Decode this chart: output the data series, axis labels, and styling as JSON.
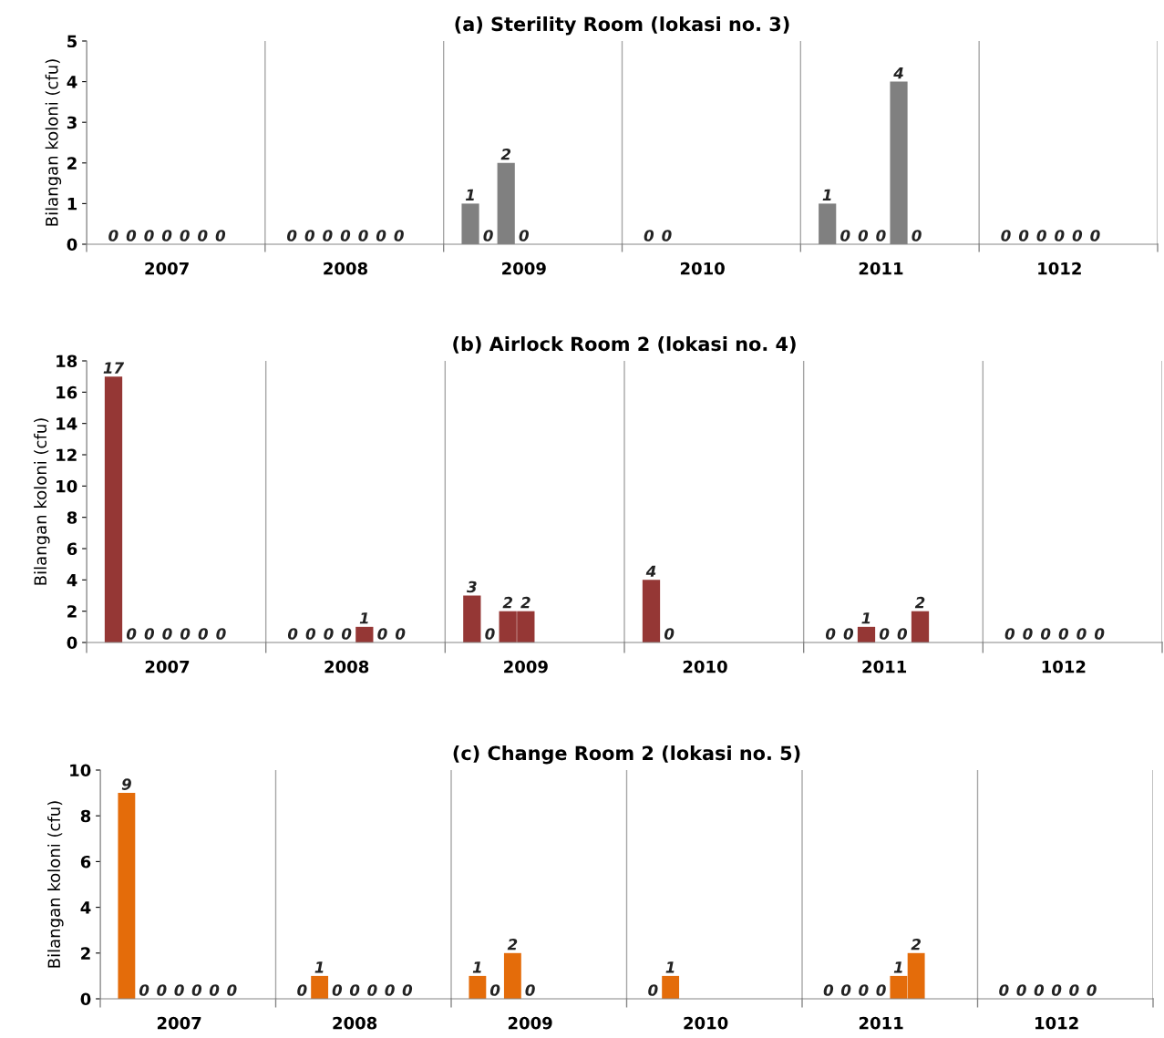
{
  "chart_data": [
    {
      "type": "bar",
      "title": "(a) Sterility Room (lokasi no. 3)",
      "ylabel": "Bilangan koloni (cfu)",
      "color": "#808080",
      "ylim": [
        0,
        5
      ],
      "yticks": [
        0,
        1,
        2,
        3,
        4,
        5
      ],
      "grid": "x",
      "data_labels": true,
      "categories": [
        null,
        null,
        null,
        null,
        "2007",
        null,
        null,
        null,
        null,
        null,
        null,
        null,
        null,
        null,
        "2008",
        null,
        null,
        null,
        null,
        null,
        null,
        null,
        null,
        null,
        "2009",
        null,
        null,
        null,
        null,
        null,
        null,
        null,
        null,
        null,
        "2010",
        null,
        null,
        null,
        null,
        null,
        null,
        null,
        null,
        null,
        "2011",
        null,
        null,
        null,
        null,
        null,
        null,
        null,
        null,
        null,
        "1012",
        null,
        null,
        null,
        null,
        null
      ],
      "values": [
        null,
        0,
        0,
        0,
        0,
        0,
        0,
        0,
        null,
        null,
        null,
        0,
        0,
        0,
        0,
        0,
        0,
        0,
        null,
        null,
        null,
        1,
        0,
        2,
        0,
        null,
        null,
        null,
        null,
        null,
        null,
        0,
        0,
        null,
        null,
        null,
        null,
        null,
        null,
        null,
        null,
        1,
        0,
        0,
        0,
        4,
        0,
        null,
        null,
        null,
        null,
        0,
        0,
        0,
        0,
        0,
        0,
        null,
        null,
        null
      ]
    },
    {
      "type": "bar",
      "title": "(b) Airlock Room 2 (lokasi no. 4)",
      "ylabel": "Bilangan koloni (cfu)",
      "color": "#953735",
      "ylim": [
        0,
        18
      ],
      "yticks": [
        0,
        2,
        4,
        6,
        8,
        10,
        12,
        14,
        16,
        18
      ],
      "grid": "x",
      "data_labels": true,
      "categories": [
        null,
        null,
        null,
        null,
        "2007",
        null,
        null,
        null,
        null,
        null,
        null,
        null,
        null,
        null,
        "2008",
        null,
        null,
        null,
        null,
        null,
        null,
        null,
        null,
        null,
        "2009",
        null,
        null,
        null,
        null,
        null,
        null,
        null,
        null,
        null,
        "2010",
        null,
        null,
        null,
        null,
        null,
        null,
        null,
        null,
        null,
        "2011",
        null,
        null,
        null,
        null,
        null,
        null,
        null,
        null,
        null,
        "1012",
        null,
        null,
        null,
        null,
        null
      ],
      "values": [
        null,
        17,
        0,
        0,
        0,
        0,
        0,
        0,
        null,
        null,
        null,
        0,
        0,
        0,
        0,
        1,
        0,
        0,
        null,
        null,
        null,
        3,
        0,
        2,
        2,
        null,
        null,
        null,
        null,
        null,
        null,
        4,
        0,
        null,
        null,
        null,
        null,
        null,
        null,
        null,
        null,
        0,
        0,
        1,
        0,
        0,
        2,
        null,
        null,
        null,
        null,
        0,
        0,
        0,
        0,
        0,
        0,
        null,
        null,
        null
      ]
    },
    {
      "type": "bar",
      "title": "(c) Change Room 2 (lokasi no. 5)",
      "ylabel": "Bilangan koloni (cfu)",
      "color": "#e46c0a",
      "ylim": [
        0,
        10
      ],
      "yticks": [
        0,
        2,
        4,
        6,
        8,
        10
      ],
      "grid": "x",
      "data_labels": true,
      "categories": [
        null,
        null,
        null,
        null,
        "2007",
        null,
        null,
        null,
        null,
        null,
        null,
        null,
        null,
        null,
        "2008",
        null,
        null,
        null,
        null,
        null,
        null,
        null,
        null,
        null,
        "2009",
        null,
        null,
        null,
        null,
        null,
        null,
        null,
        null,
        null,
        "2010",
        null,
        null,
        null,
        null,
        null,
        null,
        null,
        null,
        null,
        "2011",
        null,
        null,
        null,
        null,
        null,
        null,
        null,
        null,
        null,
        "1012",
        null,
        null,
        null,
        null,
        null
      ],
      "values": [
        null,
        9,
        0,
        0,
        0,
        0,
        0,
        0,
        null,
        null,
        null,
        0,
        1,
        0,
        0,
        0,
        0,
        0,
        null,
        null,
        null,
        1,
        0,
        2,
        0,
        null,
        null,
        null,
        null,
        null,
        null,
        0,
        1,
        null,
        null,
        null,
        null,
        null,
        null,
        null,
        null,
        0,
        0,
        0,
        0,
        1,
        2,
        null,
        null,
        null,
        null,
        0,
        0,
        0,
        0,
        0,
        0,
        null,
        null,
        null
      ]
    }
  ]
}
